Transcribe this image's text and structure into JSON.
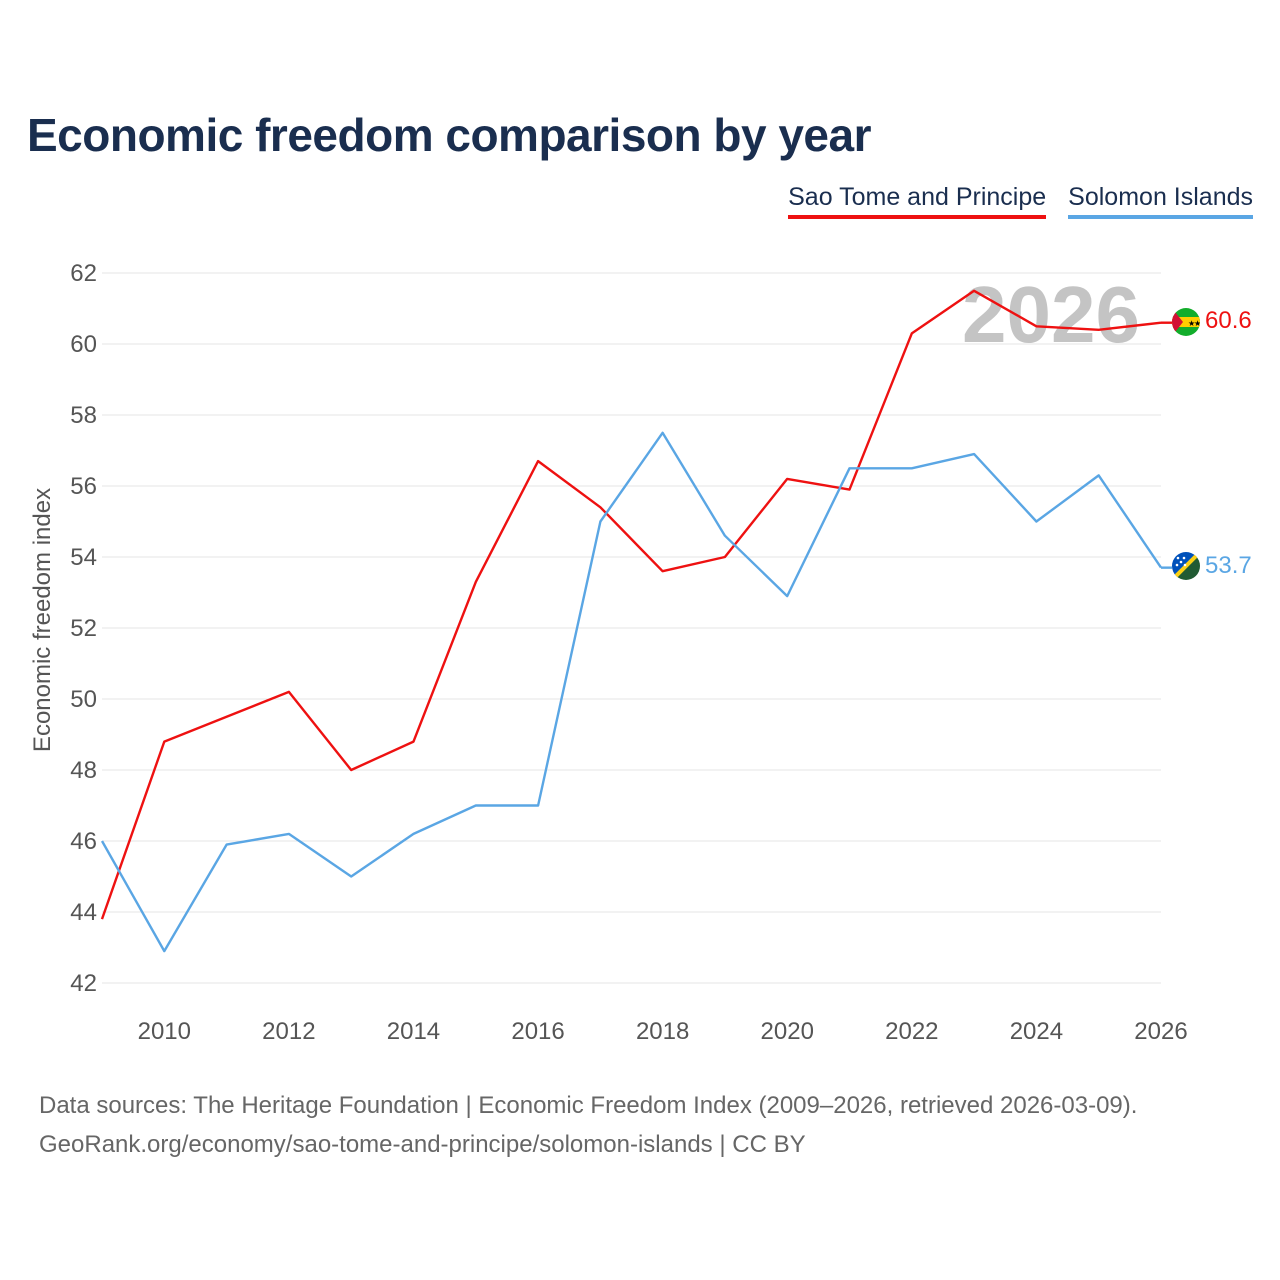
{
  "title": "Economic freedom comparison by year",
  "legend": {
    "items": [
      {
        "label": "Sao Tome and Principe",
        "color": "#ee1111"
      },
      {
        "label": "Solomon Islands",
        "color": "#5aa6e4"
      }
    ]
  },
  "chart_data": {
    "type": "line",
    "title": "Economic freedom comparison by year",
    "xlabel": "",
    "ylabel": "Economic freedom index",
    "xlim": [
      2009,
      2026
    ],
    "ylim": [
      42,
      62
    ],
    "yticks": [
      42,
      44,
      46,
      48,
      50,
      52,
      54,
      56,
      58,
      60,
      62
    ],
    "xticks": [
      2010,
      2012,
      2014,
      2016,
      2018,
      2020,
      2022,
      2024,
      2026
    ],
    "grid": true,
    "watermark_year": "2026",
    "x": [
      2009,
      2010,
      2011,
      2012,
      2013,
      2014,
      2015,
      2016,
      2017,
      2018,
      2019,
      2020,
      2021,
      2022,
      2023,
      2024,
      2025,
      2026
    ],
    "series": [
      {
        "name": "Sao Tome and Principe",
        "color": "#ee1111",
        "values": [
          43.8,
          48.8,
          49.5,
          50.2,
          48.0,
          48.8,
          53.3,
          56.7,
          55.4,
          53.6,
          54.0,
          56.2,
          55.9,
          60.3,
          61.5,
          60.5,
          60.4,
          60.6
        ],
        "end_label": "60.6",
        "flag_icon": "sao-tome-flag-icon"
      },
      {
        "name": "Solomon Islands",
        "color": "#5aa6e4",
        "values": [
          46.0,
          42.9,
          45.9,
          46.2,
          45.0,
          46.2,
          47.0,
          47.0,
          55.0,
          57.5,
          54.6,
          52.9,
          56.5,
          56.5,
          56.9,
          55.0,
          56.3,
          53.7
        ],
        "end_label": "53.7",
        "flag_icon": "solomon-islands-flag-icon"
      }
    ]
  },
  "footer": {
    "line1": "Data sources: The Heritage Foundation | Economic Freedom Index (2009–2026, retrieved 2026-03-09).",
    "line2": "GeoRank.org/economy/sao-tome-and-principe/solomon-islands | CC BY"
  }
}
